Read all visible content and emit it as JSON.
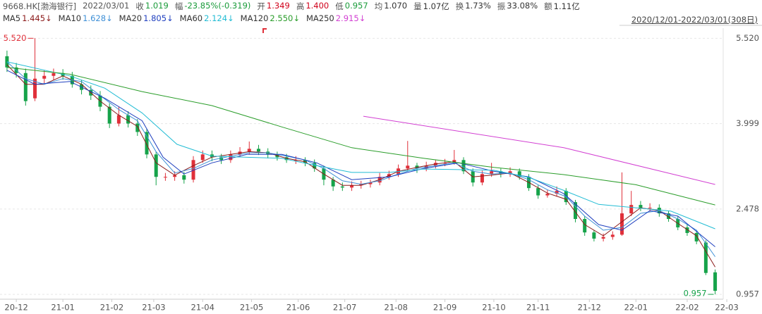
{
  "chart_data": {
    "type": "candlestick",
    "quote": {
      "symbol": "9668.HK[渤海银行]",
      "date": "2022/03/01",
      "fields": [
        {
          "label": "收",
          "value": "1.019",
          "color": "#1a9b3a"
        },
        {
          "label": "幅",
          "value": "-23.85%(-0.319)",
          "color": "#1a9b3a"
        },
        {
          "label": "开",
          "value": "1.349",
          "color": "#d0021b"
        },
        {
          "label": "高",
          "value": "1.400",
          "color": "#d0021b"
        },
        {
          "label": "低",
          "value": "0.957",
          "color": "#1a9b3a"
        },
        {
          "label": "均",
          "value": "1.070",
          "color": "#333333"
        },
        {
          "label": "量",
          "value": "1.07亿",
          "color": "#333333"
        },
        {
          "label": "换",
          "value": "1.73%",
          "color": "#333333"
        },
        {
          "label": "振",
          "value": "33.08%",
          "color": "#333333"
        },
        {
          "label": "额",
          "value": "1.11亿",
          "color": "#333333"
        }
      ]
    },
    "range_label": "2020/12/01-2022/03/01(308日)",
    "up_color": "#e0303a",
    "down_color": "#16a34a",
    "xlim": [
      0,
      315
    ],
    "xticks": [
      {
        "value": 7,
        "label": "20-12"
      },
      {
        "value": 27,
        "label": "21-01"
      },
      {
        "value": 48,
        "label": "21-02"
      },
      {
        "value": 66,
        "label": "21-03"
      },
      {
        "value": 87,
        "label": "21-04"
      },
      {
        "value": 108,
        "label": "21-05"
      },
      {
        "value": 128,
        "label": "21-06"
      },
      {
        "value": 148,
        "label": "21-07"
      },
      {
        "value": 170,
        "label": "21-08"
      },
      {
        "value": 191,
        "label": "21-09"
      },
      {
        "value": 212,
        "label": "21-10"
      },
      {
        "value": 231,
        "label": "21-11"
      },
      {
        "value": 253,
        "label": "21-12"
      },
      {
        "value": 273,
        "label": "22-01"
      },
      {
        "value": 295,
        "label": "22-02"
      },
      {
        "value": 312,
        "label": "22-03"
      }
    ],
    "ylim": [
      0.87,
      5.7
    ],
    "yticks": [
      {
        "value": 5.52,
        "label": "5.520"
      },
      3.999,
      2.478,
      0.957
    ],
    "grid": true,
    "x": [
      3,
      7,
      11,
      15,
      19,
      23,
      27,
      31,
      35,
      39,
      43,
      47,
      51,
      55,
      59,
      63,
      67,
      71,
      75,
      79,
      83,
      87,
      91,
      95,
      99,
      103,
      107,
      111,
      115,
      119,
      123,
      127,
      131,
      135,
      139,
      143,
      147,
      151,
      155,
      159,
      163,
      167,
      171,
      175,
      179,
      183,
      187,
      191,
      195,
      199,
      203,
      207,
      211,
      215,
      219,
      223,
      227,
      231,
      235,
      239,
      243,
      247,
      251,
      255,
      259,
      263,
      267,
      271,
      275,
      279,
      283,
      287,
      291,
      295,
      299,
      303,
      307
    ],
    "open": [
      5.2,
      5.0,
      4.9,
      4.45,
      4.8,
      4.85,
      4.9,
      4.85,
      4.7,
      4.6,
      4.5,
      4.3,
      4.0,
      4.15,
      4.0,
      3.85,
      3.45,
      3.05,
      3.05,
      3.08,
      3.0,
      3.35,
      3.45,
      3.4,
      3.35,
      3.45,
      3.5,
      3.55,
      3.5,
      3.45,
      3.4,
      3.35,
      3.35,
      3.3,
      3.2,
      3.0,
      2.88,
      2.86,
      2.9,
      2.92,
      2.95,
      3.05,
      3.1,
      3.2,
      3.25,
      3.2,
      3.25,
      3.3,
      3.3,
      3.35,
      3.15,
      2.95,
      3.1,
      3.15,
      3.1,
      3.15,
      3.05,
      2.85,
      2.72,
      2.75,
      2.8,
      2.6,
      2.3,
      2.06,
      1.95,
      1.98,
      2.02,
      2.4,
      2.55,
      2.5,
      2.5,
      2.4,
      2.3,
      2.15,
      2.05,
      1.88,
      1.349
    ],
    "high": [
      5.3,
      5.08,
      4.98,
      5.52,
      4.95,
      4.98,
      4.97,
      4.92,
      4.78,
      4.68,
      4.58,
      4.36,
      4.3,
      4.22,
      4.08,
      3.9,
      3.5,
      3.12,
      3.15,
      3.14,
      3.42,
      3.52,
      3.52,
      3.46,
      3.52,
      3.58,
      3.68,
      3.62,
      3.56,
      3.5,
      3.46,
      3.42,
      3.4,
      3.36,
      3.25,
      3.05,
      2.95,
      2.97,
      2.98,
      3.0,
      3.12,
      3.16,
      3.27,
      3.69,
      3.3,
      3.32,
      3.36,
      3.37,
      3.53,
      3.4,
      3.2,
      3.16,
      3.3,
      3.2,
      3.22,
      3.2,
      3.1,
      2.9,
      2.82,
      2.88,
      2.85,
      2.64,
      2.35,
      2.1,
      2.04,
      2.08,
      3.13,
      2.8,
      2.62,
      2.58,
      2.56,
      2.45,
      2.35,
      2.2,
      2.1,
      1.92,
      1.4
    ],
    "low": [
      4.92,
      4.82,
      4.32,
      4.4,
      4.72,
      4.78,
      4.78,
      4.64,
      4.52,
      4.42,
      4.22,
      3.92,
      3.95,
      3.93,
      3.78,
      3.38,
      2.9,
      2.98,
      2.98,
      2.93,
      2.95,
      3.3,
      3.33,
      3.28,
      3.3,
      3.4,
      3.45,
      3.44,
      3.38,
      3.34,
      3.3,
      3.28,
      3.24,
      3.14,
      2.9,
      2.8,
      2.8,
      2.8,
      2.84,
      2.86,
      2.9,
      3.0,
      3.05,
      3.15,
      3.12,
      3.15,
      3.2,
      3.24,
      3.27,
      3.1,
      2.88,
      2.9,
      3.05,
      3.04,
      3.05,
      3.0,
      2.8,
      2.66,
      2.68,
      2.7,
      2.55,
      2.24,
      2.0,
      1.9,
      1.9,
      1.93,
      2.0,
      2.35,
      2.44,
      2.43,
      2.34,
      2.25,
      2.1,
      2.0,
      1.85,
      1.3,
      0.957
    ],
    "close": [
      5.0,
      4.9,
      4.4,
      4.8,
      4.85,
      4.9,
      4.85,
      4.7,
      4.6,
      4.5,
      4.3,
      4.0,
      4.15,
      4.0,
      3.85,
      3.45,
      3.05,
      3.05,
      3.08,
      3.0,
      3.35,
      3.45,
      3.4,
      3.35,
      3.45,
      3.5,
      3.55,
      3.5,
      3.45,
      3.4,
      3.35,
      3.35,
      3.3,
      3.2,
      3.0,
      2.88,
      2.86,
      2.9,
      2.92,
      2.95,
      3.05,
      3.1,
      3.2,
      3.25,
      3.2,
      3.25,
      3.3,
      3.3,
      3.35,
      3.15,
      2.95,
      3.1,
      3.15,
      3.1,
      3.15,
      3.05,
      2.85,
      2.72,
      2.75,
      2.8,
      2.6,
      2.3,
      2.06,
      1.95,
      1.98,
      2.02,
      2.4,
      2.55,
      2.5,
      2.5,
      2.4,
      2.3,
      2.15,
      2.05,
      1.9,
      1.338,
      1.019
    ],
    "max_label": {
      "value": 5.52,
      "label": "5.520"
    },
    "min_label": {
      "value": 0.957,
      "label": "0.957"
    },
    "series": [
      {
        "name": "MA5",
        "color": "#8b1a1a",
        "current": {
          "value": 1.445,
          "label": "1.445↓"
        },
        "x": [
          3,
          11,
          19,
          27,
          35,
          43,
          51,
          59,
          67,
          75,
          83,
          91,
          99,
          107,
          115,
          123,
          131,
          139,
          147,
          155,
          163,
          171,
          179,
          187,
          195,
          203,
          211,
          219,
          227,
          235,
          243,
          251,
          259,
          267,
          275,
          283,
          291,
          299,
          307
        ],
        "values": [
          5.05,
          4.7,
          4.7,
          4.85,
          4.7,
          4.4,
          4.15,
          3.95,
          3.3,
          3.08,
          3.25,
          3.4,
          3.45,
          3.5,
          3.48,
          3.38,
          3.32,
          3.1,
          2.9,
          2.9,
          3.0,
          3.15,
          3.22,
          3.28,
          3.32,
          3.05,
          3.08,
          3.12,
          2.95,
          2.76,
          2.65,
          2.2,
          2.0,
          2.25,
          2.5,
          2.45,
          2.22,
          2.0,
          1.445
        ]
      },
      {
        "name": "MA10",
        "color": "#3d8fd6",
        "current": {
          "value": 1.628,
          "label": "1.628↓"
        },
        "x": [
          3,
          11,
          19,
          27,
          35,
          43,
          51,
          59,
          67,
          75,
          83,
          91,
          99,
          107,
          115,
          123,
          131,
          139,
          147,
          155,
          163,
          171,
          179,
          187,
          195,
          203,
          211,
          219,
          227,
          235,
          243,
          251,
          259,
          267,
          275,
          283,
          291,
          299,
          307
        ],
        "values": [
          5.1,
          4.8,
          4.7,
          4.8,
          4.75,
          4.5,
          4.25,
          4.05,
          3.5,
          3.12,
          3.2,
          3.35,
          3.42,
          3.48,
          3.48,
          3.42,
          3.35,
          3.2,
          2.98,
          2.92,
          2.98,
          3.1,
          3.2,
          3.25,
          3.3,
          3.15,
          3.1,
          3.12,
          3.0,
          2.82,
          2.7,
          2.35,
          2.1,
          2.15,
          2.4,
          2.45,
          2.3,
          2.1,
          1.628
        ]
      },
      {
        "name": "MA20",
        "color": "#1f3fbf",
        "current": {
          "value": 1.805,
          "label": "1.805↓"
        },
        "x": [
          3,
          15,
          30,
          45,
          61,
          70,
          79,
          91,
          106,
          121,
          136,
          151,
          167,
          182,
          197,
          212,
          227,
          242,
          257,
          267,
          279,
          291,
          307
        ],
        "values": [
          4.95,
          4.7,
          4.75,
          4.45,
          4.05,
          3.4,
          3.1,
          3.3,
          3.45,
          3.45,
          3.3,
          3.0,
          3.05,
          3.2,
          3.3,
          3.15,
          3.05,
          2.75,
          2.2,
          2.1,
          2.45,
          2.35,
          1.805
        ]
      },
      {
        "name": "MA60",
        "color": "#22bcd4",
        "current": {
          "value": 2.124,
          "label": "2.124↓"
        },
        "x": [
          3,
          30,
          45,
          61,
          76,
          91,
          121,
          136,
          151,
          167,
          182,
          212,
          227,
          242,
          257,
          273,
          288,
          307
        ],
        "values": [
          5.1,
          4.85,
          4.63,
          4.19,
          3.63,
          3.42,
          3.38,
          3.25,
          3.13,
          3.13,
          3.19,
          3.17,
          3.04,
          2.81,
          2.56,
          2.5,
          2.44,
          2.124
        ]
      },
      {
        "name": "MA120",
        "color": "#2a9d2a",
        "current": {
          "value": 2.55,
          "label": "2.550↓"
        },
        "x": [
          3,
          30,
          61,
          91,
          121,
          151,
          182,
          212,
          242,
          273,
          307
        ],
        "values": [
          5.0,
          4.88,
          4.57,
          4.32,
          3.94,
          3.57,
          3.38,
          3.22,
          3.09,
          2.91,
          2.55
        ]
      },
      {
        "name": "MA250",
        "color": "#d23fd2",
        "current": {
          "value": 2.915,
          "label": "2.915↓"
        },
        "x": [
          156,
          242,
          307
        ],
        "values": [
          4.13,
          3.57,
          2.915
        ]
      }
    ]
  }
}
